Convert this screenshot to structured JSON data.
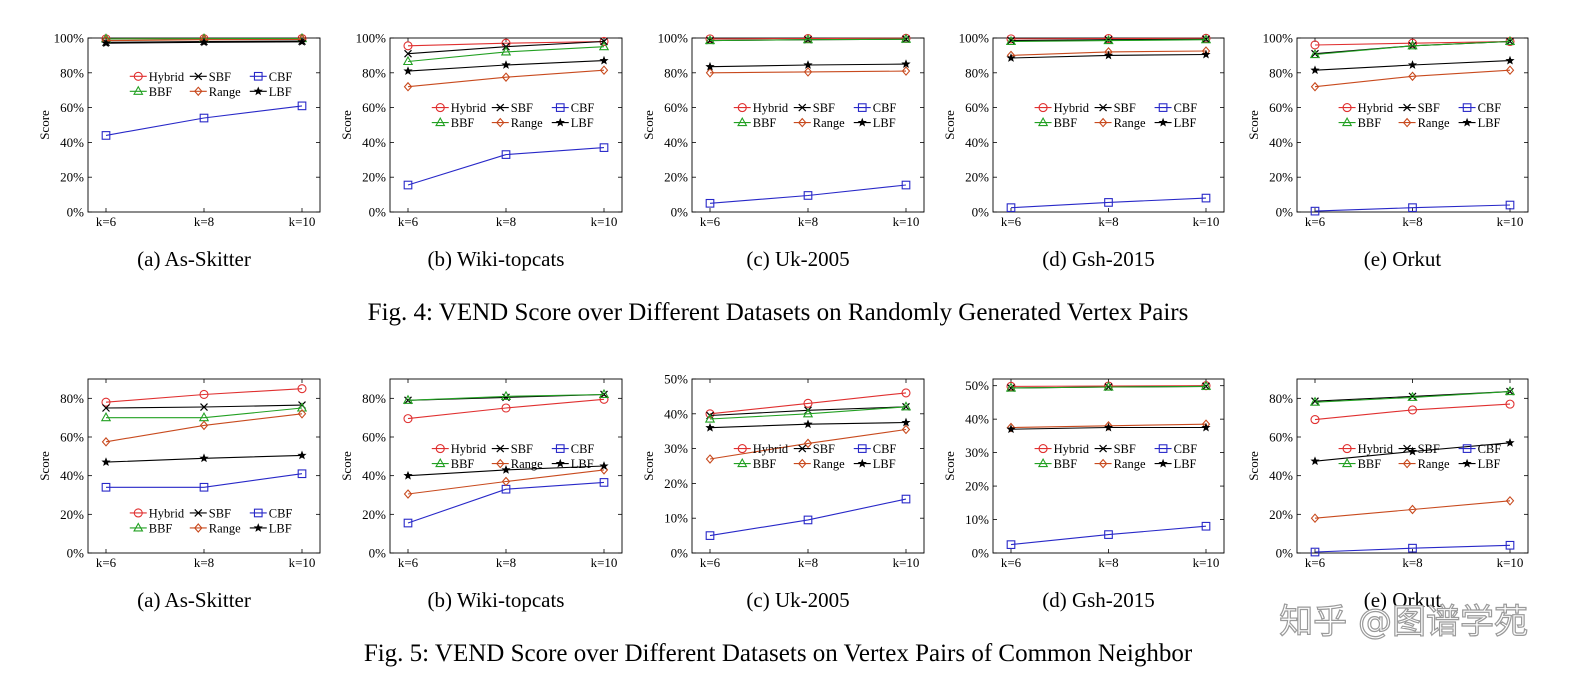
{
  "figures": [
    {
      "caption": "Fig. 4: VEND Score over Different Datasets on Randomly Generated Vertex Pairs"
    },
    {
      "caption": "Fig. 5: VEND Score over Different Datasets on Vertex Pairs of Common Neighbor"
    }
  ],
  "watermark": "知乎 @图谱学苑",
  "legend_entries": [
    "Hybrid",
    "SBF",
    "CBF",
    "BBF",
    "Range",
    "LBF"
  ],
  "series_colors": {
    "Hybrid": "#e03030",
    "SBF": "#000000",
    "CBF": "#2828c8",
    "BBF": "#22a022",
    "Range": "#c84a1e",
    "LBF": "#000000"
  },
  "chart_data": [
    {
      "type": "line",
      "figure": 4,
      "subtitle": "(a) As-Skitter",
      "ylabel": "Score",
      "categories": [
        "k=6",
        "k=8",
        "k=10"
      ],
      "ylim": [
        0,
        100
      ],
      "yticks": [
        0,
        20,
        40,
        60,
        80,
        100
      ],
      "ytick_format": "%",
      "legend_position": "upper-middle",
      "series": [
        {
          "name": "Hybrid",
          "values": [
            99.5,
            99.6,
            99.7
          ]
        },
        {
          "name": "SBF",
          "values": [
            97.5,
            98,
            98.2
          ]
        },
        {
          "name": "CBF",
          "values": [
            44,
            54,
            61
          ]
        },
        {
          "name": "BBF",
          "values": [
            99.5,
            99.6,
            99.7
          ]
        },
        {
          "name": "Range",
          "values": [
            98.5,
            99,
            99.2
          ]
        },
        {
          "name": "LBF",
          "values": [
            97,
            97.5,
            97.8
          ]
        }
      ]
    },
    {
      "type": "line",
      "figure": 4,
      "subtitle": "(b) Wiki-topcats",
      "ylabel": "Score",
      "categories": [
        "k=6",
        "k=8",
        "k=10"
      ],
      "ylim": [
        0,
        100
      ],
      "yticks": [
        0,
        20,
        40,
        60,
        80,
        100
      ],
      "ytick_format": "%",
      "legend_position": "middle",
      "series": [
        {
          "name": "Hybrid",
          "values": [
            95.5,
            97,
            98
          ]
        },
        {
          "name": "SBF",
          "values": [
            91,
            95,
            98
          ]
        },
        {
          "name": "CBF",
          "values": [
            15.5,
            33,
            37
          ]
        },
        {
          "name": "BBF",
          "values": [
            86.5,
            92,
            95
          ]
        },
        {
          "name": "Range",
          "values": [
            72,
            77.5,
            81.5
          ]
        },
        {
          "name": "LBF",
          "values": [
            81,
            84.5,
            87
          ]
        }
      ]
    },
    {
      "type": "line",
      "figure": 4,
      "subtitle": "(c) Uk-2005",
      "ylabel": "Score",
      "categories": [
        "k=6",
        "k=8",
        "k=10"
      ],
      "ylim": [
        0,
        100
      ],
      "yticks": [
        0,
        20,
        40,
        60,
        80,
        100
      ],
      "ytick_format": "%",
      "legend_position": "middle",
      "series": [
        {
          "name": "Hybrid",
          "values": [
            99.5,
            99.7,
            99.8
          ]
        },
        {
          "name": "SBF",
          "values": [
            98.5,
            99,
            99.3
          ]
        },
        {
          "name": "CBF",
          "values": [
            5,
            9.5,
            15.5
          ]
        },
        {
          "name": "BBF",
          "values": [
            98.5,
            99,
            99.3
          ]
        },
        {
          "name": "Range",
          "values": [
            80,
            80.5,
            81
          ]
        },
        {
          "name": "LBF",
          "values": [
            83.5,
            84.5,
            85
          ]
        }
      ]
    },
    {
      "type": "line",
      "figure": 4,
      "subtitle": "(d) Gsh-2015",
      "ylabel": "Score",
      "categories": [
        "k=6",
        "k=8",
        "k=10"
      ],
      "ylim": [
        0,
        100
      ],
      "yticks": [
        0,
        20,
        40,
        60,
        80,
        100
      ],
      "ytick_format": "%",
      "legend_position": "middle",
      "series": [
        {
          "name": "Hybrid",
          "values": [
            99.5,
            99.7,
            99.8
          ]
        },
        {
          "name": "SBF",
          "values": [
            98.5,
            99,
            99.3
          ]
        },
        {
          "name": "CBF",
          "values": [
            2.5,
            5.5,
            8
          ]
        },
        {
          "name": "BBF",
          "values": [
            98,
            98.5,
            99
          ]
        },
        {
          "name": "Range",
          "values": [
            90,
            92,
            92.5
          ]
        },
        {
          "name": "LBF",
          "values": [
            88.5,
            90,
            90.5
          ]
        }
      ]
    },
    {
      "type": "line",
      "figure": 4,
      "subtitle": "(e) Orkut",
      "ylabel": "Score",
      "categories": [
        "k=6",
        "k=8",
        "k=10"
      ],
      "ylim": [
        0,
        100
      ],
      "yticks": [
        0,
        20,
        40,
        60,
        80,
        100
      ],
      "ytick_format": "%",
      "legend_position": "middle",
      "series": [
        {
          "name": "Hybrid",
          "values": [
            96,
            97,
            98
          ]
        },
        {
          "name": "SBF",
          "values": [
            91,
            95.5,
            98
          ]
        },
        {
          "name": "CBF",
          "values": [
            0.5,
            2.5,
            4
          ]
        },
        {
          "name": "BBF",
          "values": [
            90.5,
            95.5,
            98
          ]
        },
        {
          "name": "Range",
          "values": [
            72,
            78,
            81.5
          ]
        },
        {
          "name": "LBF",
          "values": [
            81.5,
            84.5,
            87
          ]
        }
      ]
    },
    {
      "type": "line",
      "figure": 5,
      "subtitle": "(a) As-Skitter",
      "ylabel": "Score",
      "categories": [
        "k=6",
        "k=8",
        "k=10"
      ],
      "ylim": [
        0,
        90
      ],
      "yticks": [
        0,
        20,
        40,
        60,
        80
      ],
      "ytick_format": "%",
      "legend_position": "bottom-middle",
      "series": [
        {
          "name": "Hybrid",
          "values": [
            78,
            82,
            85
          ]
        },
        {
          "name": "SBF",
          "values": [
            75,
            75.5,
            76.5
          ]
        },
        {
          "name": "CBF",
          "values": [
            34,
            34,
            41
          ]
        },
        {
          "name": "BBF",
          "values": [
            70,
            70,
            75
          ]
        },
        {
          "name": "Range",
          "values": [
            57.5,
            66,
            72
          ]
        },
        {
          "name": "LBF",
          "values": [
            47,
            49,
            50.5
          ]
        }
      ]
    },
    {
      "type": "line",
      "figure": 5,
      "subtitle": "(b) Wiki-topcats",
      "ylabel": "Score",
      "categories": [
        "k=6",
        "k=8",
        "k=10"
      ],
      "ylim": [
        0,
        90
      ],
      "yticks": [
        0,
        20,
        40,
        60,
        80
      ],
      "ytick_format": "%",
      "legend_position": "middle",
      "series": [
        {
          "name": "Hybrid",
          "values": [
            69.5,
            75,
            79.5
          ]
        },
        {
          "name": "SBF",
          "values": [
            79,
            80.5,
            82
          ]
        },
        {
          "name": "CBF",
          "values": [
            15.5,
            33,
            36.5
          ]
        },
        {
          "name": "BBF",
          "values": [
            79,
            81,
            82
          ]
        },
        {
          "name": "Range",
          "values": [
            30.5,
            37,
            43
          ]
        },
        {
          "name": "LBF",
          "values": [
            40,
            43,
            45
          ]
        }
      ]
    },
    {
      "type": "line",
      "figure": 5,
      "subtitle": "(c) Uk-2005",
      "ylabel": "Score",
      "categories": [
        "k=6",
        "k=8",
        "k=10"
      ],
      "ylim": [
        0,
        50
      ],
      "yticks": [
        0,
        10,
        20,
        30,
        40,
        50
      ],
      "ytick_format": "%",
      "legend_position": "middle",
      "series": [
        {
          "name": "Hybrid",
          "values": [
            40,
            43,
            46
          ]
        },
        {
          "name": "SBF",
          "values": [
            39.5,
            41,
            42
          ]
        },
        {
          "name": "CBF",
          "values": [
            5,
            9.5,
            15.5
          ]
        },
        {
          "name": "BBF",
          "values": [
            38.5,
            40,
            42
          ]
        },
        {
          "name": "Range",
          "values": [
            27,
            31.5,
            35.5
          ]
        },
        {
          "name": "LBF",
          "values": [
            36,
            37,
            37.5
          ]
        }
      ]
    },
    {
      "type": "line",
      "figure": 5,
      "subtitle": "(d) Gsh-2015",
      "ylabel": "Score",
      "categories": [
        "k=6",
        "k=8",
        "k=10"
      ],
      "ylim": [
        0,
        52
      ],
      "yticks": [
        0,
        10,
        20,
        30,
        40,
        50
      ],
      "ytick_format": "%",
      "legend_position": "middle",
      "series": [
        {
          "name": "Hybrid",
          "values": [
            49.8,
            49.9,
            50
          ]
        },
        {
          "name": "SBF",
          "values": [
            49.3,
            49.6,
            49.8
          ]
        },
        {
          "name": "CBF",
          "values": [
            2.5,
            5.5,
            8
          ]
        },
        {
          "name": "BBF",
          "values": [
            49.3,
            49.6,
            49.8
          ]
        },
        {
          "name": "Range",
          "values": [
            37.5,
            38,
            38.5
          ]
        },
        {
          "name": "LBF",
          "values": [
            37,
            37.5,
            37.5
          ]
        }
      ]
    },
    {
      "type": "line",
      "figure": 5,
      "subtitle": "(e) Orkut",
      "ylabel": "Score",
      "categories": [
        "k=6",
        "k=8",
        "k=10"
      ],
      "ylim": [
        0,
        90
      ],
      "yticks": [
        0,
        20,
        40,
        60,
        80
      ],
      "ytick_format": "%",
      "legend_position": "middle",
      "series": [
        {
          "name": "Hybrid",
          "values": [
            69,
            74,
            77
          ]
        },
        {
          "name": "SBF",
          "values": [
            78.5,
            81,
            83.5
          ]
        },
        {
          "name": "CBF",
          "values": [
            0.5,
            2.5,
            4
          ]
        },
        {
          "name": "BBF",
          "values": [
            78,
            80.5,
            83.5
          ]
        },
        {
          "name": "Range",
          "values": [
            18,
            22.5,
            27
          ]
        },
        {
          "name": "LBF",
          "values": [
            47.5,
            52.5,
            57
          ]
        }
      ]
    }
  ]
}
